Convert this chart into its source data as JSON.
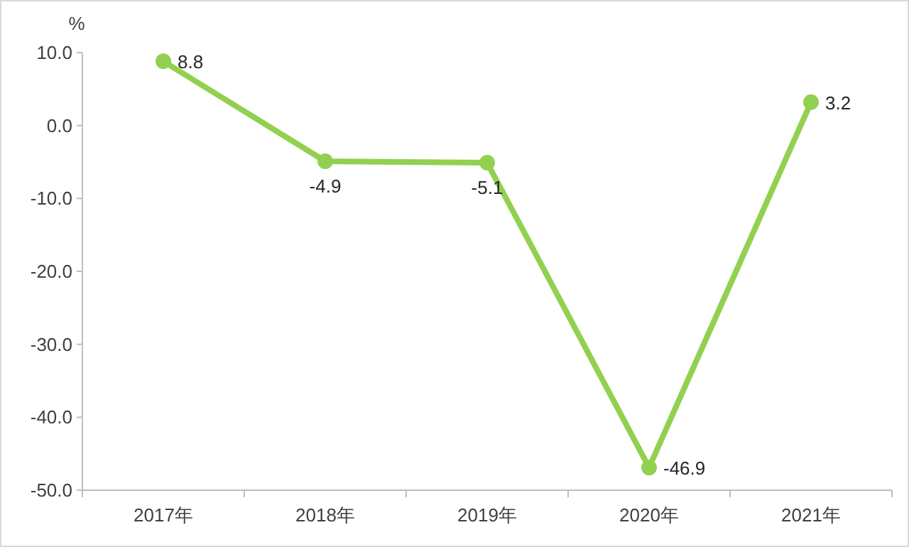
{
  "chart_data": {
    "type": "line",
    "ylabel": "%",
    "categories": [
      "2017年",
      "2018年",
      "2019年",
      "2020年",
      "2021年"
    ],
    "series": [
      {
        "color": "#92d050",
        "values": [
          8.8,
          -4.9,
          -5.1,
          -46.9,
          3.2
        ]
      }
    ],
    "ylim": [
      -50,
      10
    ],
    "yticks": [
      {
        "value": 10,
        "label": "10.0"
      },
      {
        "value": 0,
        "label": "0.0"
      },
      {
        "value": -10,
        "label": "-10.0"
      },
      {
        "value": -20,
        "label": "-20.0"
      },
      {
        "value": -30,
        "label": "-30.0"
      },
      {
        "value": -40,
        "label": "-40.0"
      },
      {
        "value": -50,
        "label": "-50.0"
      }
    ],
    "marker": "circle",
    "data_labels": true
  }
}
